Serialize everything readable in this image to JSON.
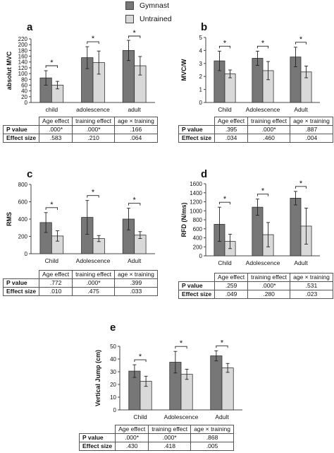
{
  "legend": [
    {
      "label": "Gymnast",
      "color": "#777777"
    },
    {
      "label": "Untrained",
      "color": "#d9d9d9"
    }
  ],
  "colors": {
    "gymnast": "#777777",
    "untrained": "#d9d9d9",
    "bar_stroke": "#333333"
  },
  "chart_data": [
    {
      "panel": "a",
      "type": "bar",
      "title": "",
      "xlabel": "",
      "ylabel": "absolut MVC",
      "categories": [
        "child",
        "adolescence",
        "adult"
      ],
      "ylim": [
        0,
        220
      ],
      "yticks": [
        0,
        20,
        40,
        60,
        80,
        100,
        120,
        140,
        160,
        180,
        200,
        220
      ],
      "series": [
        {
          "name": "Gymnast",
          "values": [
            85,
            155,
            180
          ],
          "errors": [
            25,
            38,
            35
          ]
        },
        {
          "name": "Untrained",
          "values": [
            60,
            138,
            127
          ],
          "errors": [
            13,
            40,
            32
          ]
        }
      ],
      "significance": [
        "*",
        "*",
        "*"
      ]
    },
    {
      "panel": "b",
      "type": "bar",
      "title": "",
      "xlabel": "",
      "ylabel": "MVC/W",
      "categories": [
        "Child",
        "Adolescence",
        "Adult"
      ],
      "ylim": [
        0,
        5
      ],
      "yticks": [
        0,
        1,
        2,
        3,
        4,
        5
      ],
      "series": [
        {
          "name": "Gymnast",
          "values": [
            3.2,
            3.4,
            3.5
          ],
          "errors": [
            0.75,
            0.55,
            0.75
          ]
        },
        {
          "name": "Untrained",
          "values": [
            2.2,
            2.45,
            2.35
          ],
          "errors": [
            0.3,
            0.7,
            0.45
          ]
        }
      ],
      "significance": [
        "*",
        "*",
        "*"
      ]
    },
    {
      "panel": "c",
      "type": "bar",
      "title": "",
      "xlabel": "",
      "ylabel": "RMS",
      "categories": [
        "Child",
        "Adolescence",
        "Adult"
      ],
      "ylim": [
        0,
        800
      ],
      "yticks": [
        0,
        200,
        400,
        600,
        800
      ],
      "series": [
        {
          "name": "Gymnast",
          "values": [
            360,
            420,
            400
          ],
          "errors": [
            115,
            195,
            125
          ]
        },
        {
          "name": "Untrained",
          "values": [
            205,
            175,
            215
          ],
          "errors": [
            60,
            35,
            40
          ]
        }
      ],
      "significance": [
        "*",
        "*",
        "*"
      ]
    },
    {
      "panel": "d",
      "type": "bar",
      "title": "",
      "xlabel": "",
      "ylabel": "RFD (N/ms)",
      "categories": [
        "Child",
        "Adolescence",
        "Adult"
      ],
      "ylim": [
        0,
        1600
      ],
      "yticks": [
        0,
        200,
        400,
        600,
        800,
        1000,
        1200,
        1400,
        1600
      ],
      "series": [
        {
          "name": "Gymnast",
          "values": [
            700,
            1080,
            1280
          ],
          "errors": [
            380,
            180,
            150
          ]
        },
        {
          "name": "Untrained",
          "values": [
            320,
            470,
            660
          ],
          "errors": [
            160,
            270,
            400
          ]
        }
      ],
      "significance": [
        "*",
        "*",
        "*"
      ]
    },
    {
      "panel": "e",
      "type": "bar",
      "title": "",
      "xlabel": "",
      "ylabel": "Vertical Jump (cm)",
      "categories": [
        "Child",
        "Adolescence",
        "Adult"
      ],
      "ylim": [
        0,
        50
      ],
      "yticks": [
        0,
        10,
        20,
        30,
        40,
        50
      ],
      "series": [
        {
          "name": "Gymnast",
          "values": [
            30.5,
            37.5,
            42.5
          ],
          "errors": [
            5,
            8.5,
            4
          ]
        },
        {
          "name": "Untrained",
          "values": [
            22.5,
            28,
            33
          ],
          "errors": [
            4,
            4,
            3.5
          ]
        }
      ],
      "significance": [
        "*",
        "*",
        "*"
      ]
    }
  ],
  "tables": [
    {
      "header": [
        "Age effect",
        "training effect",
        "age × training"
      ],
      "rows": [
        {
          "label": "P value",
          "cells": [
            ".000*",
            ".000*",
            ".166"
          ]
        },
        {
          "label": "Effect size",
          "cells": [
            ".583",
            ".210",
            ".064"
          ]
        }
      ]
    },
    {
      "header": [
        "Age effect",
        "training effect",
        "age × training"
      ],
      "rows": [
        {
          "label": "P value",
          "cells": [
            ".395",
            ".000*",
            ".887"
          ]
        },
        {
          "label": "Effect size",
          "cells": [
            ".034",
            ".460",
            ".004"
          ]
        }
      ]
    },
    {
      "header": [
        "Age effect",
        "training effect",
        "age × training"
      ],
      "rows": [
        {
          "label": "P value",
          "cells": [
            ".772",
            ".000*",
            ".399"
          ]
        },
        {
          "label": "Effect size",
          "cells": [
            ".010",
            ".475",
            ".033"
          ]
        }
      ]
    },
    {
      "header": [
        "Age effect",
        "training effect",
        "age × training"
      ],
      "rows": [
        {
          "label": "P value",
          "cells": [
            ".259",
            ".000*",
            ".531"
          ]
        },
        {
          "label": "Effect size",
          "cells": [
            ".049",
            ".280",
            ".023"
          ]
        }
      ]
    },
    {
      "header": [
        "Age effect",
        "training effect",
        "age × training"
      ],
      "rows": [
        {
          "label": "P value",
          "cells": [
            ".000*",
            ".000*",
            ".868"
          ]
        },
        {
          "label": "Effect size",
          "cells": [
            ".430",
            ".418",
            ".005"
          ]
        }
      ]
    }
  ]
}
